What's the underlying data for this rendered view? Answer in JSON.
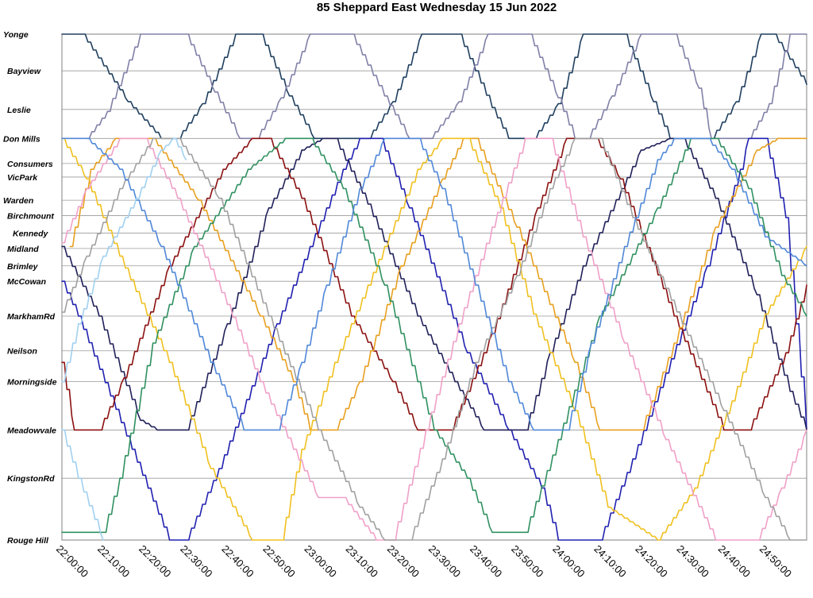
{
  "chart_data": {
    "type": "line",
    "title": "85 Sheppard East Wednesday 15 Jun 2022",
    "x_ticks": [
      "22:00:00",
      "22:10:00",
      "22:20:00",
      "22:30:00",
      "22:40:00",
      "22:50:00",
      "23:00:00",
      "23:10:00",
      "23:20:00",
      "23:30:00",
      "23:40:00",
      "23:50:00",
      "24:00:00",
      "24:10:00",
      "24:20:00",
      "24:30:00",
      "24:40:00",
      "24:50:00"
    ],
    "xlim_minutes": [
      0,
      180
    ],
    "stops": [
      {
        "name": "Yonge",
        "km": 0
      },
      {
        "name": "Bayview",
        "km": 1.9
      },
      {
        "name": "Leslie",
        "km": 3.9
      },
      {
        "name": "Don Mills",
        "km": 5.4
      },
      {
        "name": "Consumers",
        "km": 6.7
      },
      {
        "name": "VicPark",
        "km": 7.4
      },
      {
        "name": "Warden",
        "km": 8.6
      },
      {
        "name": "Birchmount",
        "km": 9.4
      },
      {
        "name": "Kennedy",
        "km": 10.3
      },
      {
        "name": "Midland",
        "km": 11.1
      },
      {
        "name": "Brimley",
        "km": 12.0
      },
      {
        "name": "McCowan",
        "km": 12.8
      },
      {
        "name": "MarkhamRd",
        "km": 14.6
      },
      {
        "name": "Neilson",
        "km": 16.4
      },
      {
        "name": "Morningside",
        "km": 18.0
      },
      {
        "name": "Meadowvale",
        "km": 20.5
      },
      {
        "name": "KingstonRd",
        "km": 23.0
      },
      {
        "name": "Rouge Hill",
        "km": 26.2
      }
    ],
    "ylim_km": [
      0,
      26.2
    ],
    "grid": true,
    "legend": "none",
    "series": [
      {
        "color": "#1f3f5f",
        "points": [
          [
            0,
            0
          ],
          [
            5,
            0
          ],
          [
            16,
            3.5
          ],
          [
            24,
            5.4
          ],
          [
            28,
            5.4
          ],
          [
            34,
            3.6
          ],
          [
            42,
            0
          ],
          [
            48,
            0
          ],
          [
            55,
            3.2
          ],
          [
            61,
            5.4
          ],
          [
            74,
            5.4
          ],
          [
            80,
            3.5
          ],
          [
            87,
            0
          ],
          [
            96,
            0
          ],
          [
            104,
            3.8
          ],
          [
            108,
            5.4
          ],
          [
            114,
            5.4
          ],
          [
            120,
            3.6
          ],
          [
            126,
            0
          ],
          [
            136,
            0
          ],
          [
            143,
            3.5
          ],
          [
            147,
            5.4
          ],
          [
            157,
            5.4
          ],
          [
            163,
            3.5
          ],
          [
            169,
            0
          ],
          [
            172,
            0
          ],
          [
            180,
            2.6
          ]
        ]
      },
      {
        "color": "#8080a8",
        "points": [
          [
            6,
            5.4
          ],
          [
            11,
            4.0
          ],
          [
            19,
            0
          ],
          [
            30,
            0
          ],
          [
            37,
            3.0
          ],
          [
            43,
            5.4
          ],
          [
            47,
            5.4
          ],
          [
            53,
            3.3
          ],
          [
            60,
            0
          ],
          [
            70,
            0
          ],
          [
            78,
            3.2
          ],
          [
            84,
            5.4
          ],
          [
            89,
            5.4
          ],
          [
            96,
            3.5
          ],
          [
            103,
            0
          ],
          [
            113,
            0
          ],
          [
            120,
            3.3
          ],
          [
            124,
            5.4
          ],
          [
            127,
            5.4
          ],
          [
            133,
            3.2
          ],
          [
            140,
            0
          ],
          [
            148,
            0
          ],
          [
            154,
            2.8
          ],
          [
            157,
            5.4
          ],
          [
            166,
            5.4
          ],
          [
            171,
            3.6
          ],
          [
            176,
            0
          ],
          [
            180,
            0
          ]
        ]
      },
      {
        "color": "#2020b0",
        "points": [
          [
            0,
            12.8
          ],
          [
            4,
            14.6
          ],
          [
            17,
            21.5
          ],
          [
            26,
            26.2
          ],
          [
            30,
            26.2
          ],
          [
            38,
            22.5
          ],
          [
            52,
            15.0
          ],
          [
            68,
            7.0
          ],
          [
            72,
            5.4
          ],
          [
            77,
            5.4
          ],
          [
            84,
            9.0
          ],
          [
            98,
            16.5
          ],
          [
            108,
            20.5
          ],
          [
            116,
            23.5
          ],
          [
            120,
            26.2
          ],
          [
            130,
            26.2
          ],
          [
            138,
            22.0
          ],
          [
            156,
            12.0
          ],
          [
            164,
            7.0
          ],
          [
            166,
            5.4
          ],
          [
            170,
            5.4
          ],
          [
            175,
            9.5
          ],
          [
            180,
            20.5
          ]
        ]
      },
      {
        "color": "#20205a",
        "points": [
          [
            0,
            11.0
          ],
          [
            9,
            14.6
          ],
          [
            19,
            20.0
          ],
          [
            23,
            20.5
          ],
          [
            30,
            20.5
          ],
          [
            40,
            15.0
          ],
          [
            50,
            9.0
          ],
          [
            58,
            6.0
          ],
          [
            63,
            5.4
          ],
          [
            66,
            5.4
          ],
          [
            74,
            8.8
          ],
          [
            86,
            14.6
          ],
          [
            95,
            18.0
          ],
          [
            102,
            20.5
          ],
          [
            112,
            20.5
          ],
          [
            118,
            16.5
          ],
          [
            126,
            12.0
          ],
          [
            140,
            6.0
          ],
          [
            147,
            5.4
          ],
          [
            150,
            5.4
          ],
          [
            158,
            8.5
          ],
          [
            168,
            13.5
          ],
          [
            176,
            18.5
          ],
          [
            180,
            20.5
          ]
        ]
      },
      {
        "color": "#8b1010",
        "points": [
          [
            0,
            17.0
          ],
          [
            3,
            20.5
          ],
          [
            9,
            20.5
          ],
          [
            15,
            17.8
          ],
          [
            26,
            12.0
          ],
          [
            39,
            7.0
          ],
          [
            46,
            5.4
          ],
          [
            50,
            5.4
          ],
          [
            58,
            8.5
          ],
          [
            70,
            14.6
          ],
          [
            80,
            18.0
          ],
          [
            86,
            20.5
          ],
          [
            94,
            20.5
          ],
          [
            104,
            15.5
          ],
          [
            115,
            9.0
          ],
          [
            122,
            5.4
          ],
          [
            129,
            5.4
          ],
          [
            135,
            7.5
          ],
          [
            148,
            14.6
          ],
          [
            160,
            20.5
          ],
          [
            166,
            20.5
          ],
          [
            175,
            16.5
          ],
          [
            180,
            13.0
          ]
        ]
      },
      {
        "color": "#e8a020",
        "points": [
          [
            2,
            11.0
          ],
          [
            7,
            7.0
          ],
          [
            13,
            5.4
          ],
          [
            22,
            5.4
          ],
          [
            33,
            8.6
          ],
          [
            48,
            14.6
          ],
          [
            56,
            18.0
          ],
          [
            60,
            20.5
          ],
          [
            66,
            20.5
          ],
          [
            72,
            18.0
          ],
          [
            82,
            12.0
          ],
          [
            92,
            7.5
          ],
          [
            97,
            5.4
          ],
          [
            100,
            5.4
          ],
          [
            110,
            10.0
          ],
          [
            124,
            17.0
          ],
          [
            130,
            20.5
          ],
          [
            140,
            20.5
          ],
          [
            148,
            16.0
          ],
          [
            158,
            10.0
          ],
          [
            168,
            6.0
          ],
          [
            173,
            5.4
          ],
          [
            180,
            5.4
          ]
        ]
      },
      {
        "color": "#f0c020",
        "points": [
          [
            0,
            5.4
          ],
          [
            6,
            7.5
          ],
          [
            14,
            11.5
          ],
          [
            26,
            17.0
          ],
          [
            36,
            22.5
          ],
          [
            46,
            26.2
          ],
          [
            53,
            26.2
          ],
          [
            58,
            21.5
          ],
          [
            66,
            17.0
          ],
          [
            78,
            11.0
          ],
          [
            86,
            7.0
          ],
          [
            92,
            5.4
          ],
          [
            98,
            5.4
          ],
          [
            106,
            9.0
          ],
          [
            114,
            14.5
          ],
          [
            124,
            19.5
          ],
          [
            132,
            24.5
          ],
          [
            144,
            26.2
          ],
          [
            153,
            23.5
          ],
          [
            162,
            19.0
          ],
          [
            170,
            14.5
          ],
          [
            180,
            11.0
          ]
        ]
      },
      {
        "color": "#309060",
        "points": [
          [
            0,
            25.8
          ],
          [
            10,
            25.8
          ],
          [
            14,
            23.0
          ],
          [
            22,
            16.0
          ],
          [
            32,
            11.0
          ],
          [
            45,
            7.0
          ],
          [
            54,
            5.4
          ],
          [
            60,
            5.4
          ],
          [
            68,
            8.0
          ],
          [
            78,
            13.0
          ],
          [
            90,
            20.5
          ],
          [
            98,
            23.0
          ],
          [
            104,
            25.8
          ],
          [
            112,
            25.8
          ],
          [
            120,
            21.0
          ],
          [
            130,
            14.6
          ],
          [
            144,
            9.0
          ],
          [
            152,
            5.4
          ],
          [
            158,
            5.4
          ],
          [
            166,
            8.0
          ],
          [
            174,
            12.5
          ],
          [
            180,
            14.6
          ]
        ]
      },
      {
        "color": "#f0a0c8",
        "points": [
          [
            0,
            10.8
          ],
          [
            6,
            8.0
          ],
          [
            14,
            5.4
          ],
          [
            20,
            5.4
          ],
          [
            28,
            8.5
          ],
          [
            40,
            14.0
          ],
          [
            48,
            18.0
          ],
          [
            56,
            21.5
          ],
          [
            62,
            24.0
          ],
          [
            68,
            24.0
          ],
          [
            76,
            26.2
          ],
          [
            80,
            26.2
          ],
          [
            88,
            20.5
          ],
          [
            96,
            15.0
          ],
          [
            104,
            10.0
          ],
          [
            112,
            5.4
          ],
          [
            118,
            5.4
          ],
          [
            126,
            10.5
          ],
          [
            136,
            16.0
          ],
          [
            146,
            21.0
          ],
          [
            158,
            26.2
          ],
          [
            168,
            26.2
          ],
          [
            174,
            23.5
          ],
          [
            180,
            20.5
          ]
        ]
      },
      {
        "color": "#a0a0a0",
        "points": [
          [
            0,
            14.4
          ],
          [
            6,
            11.5
          ],
          [
            14,
            8.0
          ],
          [
            22,
            5.4
          ],
          [
            28,
            5.4
          ],
          [
            38,
            8.5
          ],
          [
            50,
            14.6
          ],
          [
            62,
            20.5
          ],
          [
            72,
            24.5
          ],
          [
            78,
            26.2
          ],
          [
            84,
            26.2
          ],
          [
            92,
            22.0
          ],
          [
            100,
            17.0
          ],
          [
            110,
            12.5
          ],
          [
            118,
            8.0
          ],
          [
            124,
            5.4
          ],
          [
            130,
            5.4
          ],
          [
            138,
            9.5
          ],
          [
            150,
            15.0
          ],
          [
            160,
            19.5
          ],
          [
            170,
            24.0
          ],
          [
            176,
            26.2
          ],
          [
            180,
            26.2
          ]
        ]
      },
      {
        "color": "#5088d8",
        "points": [
          [
            0,
            5.4
          ],
          [
            6,
            5.4
          ],
          [
            14,
            7.0
          ],
          [
            24,
            11.0
          ],
          [
            36,
            17.0
          ],
          [
            44,
            20.5
          ],
          [
            52,
            20.5
          ],
          [
            58,
            17.0
          ],
          [
            64,
            13.0
          ],
          [
            72,
            8.0
          ],
          [
            78,
            5.4
          ],
          [
            86,
            5.4
          ],
          [
            92,
            8.0
          ],
          [
            100,
            13.0
          ],
          [
            108,
            18.0
          ],
          [
            114,
            20.5
          ],
          [
            122,
            20.5
          ],
          [
            128,
            16.0
          ],
          [
            136,
            11.0
          ],
          [
            144,
            6.5
          ],
          [
            148,
            5.4
          ],
          [
            156,
            5.4
          ],
          [
            162,
            7.0
          ],
          [
            170,
            10.5
          ],
          [
            180,
            12.0
          ]
        ]
      },
      {
        "color": "#a0d0f0",
        "points": [
          [
            0,
            18.0
          ],
          [
            4,
            15.0
          ],
          [
            10,
            11.5
          ],
          [
            18,
            8.5
          ],
          [
            24,
            6.0
          ],
          [
            27,
            5.4
          ],
          [
            30,
            6.5
          ],
          [
            0,
            20.5
          ],
          [
            4,
            23.0
          ],
          [
            10,
            26.2
          ]
        ]
      }
    ]
  }
}
